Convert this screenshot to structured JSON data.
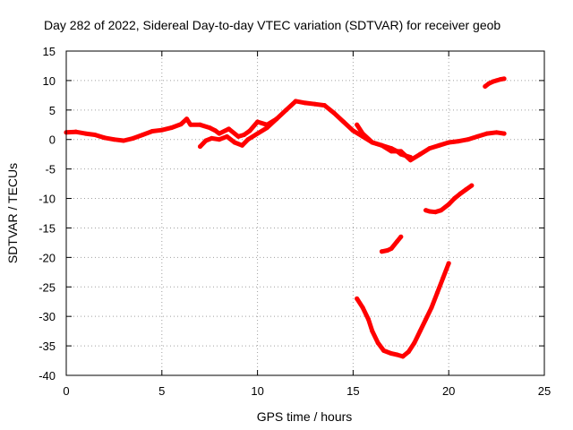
{
  "chart_data": {
    "type": "scatter",
    "title": "Day 282 of 2022, Sidereal Day-to-day VTEC variation (SDTVAR) for receiver geob",
    "xlabel": "GPS time / hours",
    "ylabel": "SDTVAR / TECUs",
    "xlim": [
      0,
      25
    ],
    "ylim": [
      -40,
      15
    ],
    "xticks": [
      0,
      5,
      10,
      15,
      20,
      25
    ],
    "yticks": [
      15,
      10,
      5,
      0,
      -5,
      -10,
      -15,
      -20,
      -25,
      -30,
      -35,
      -40
    ],
    "grid": true,
    "series_color": "#ff0000",
    "series": [
      {
        "x": [
          0.0,
          0.5,
          1.0,
          1.5,
          2.0,
          2.5,
          3.0,
          3.5,
          4.0,
          4.5,
          5.0,
          5.5,
          6.0,
          6.3,
          6.5,
          7.0,
          7.5,
          7.8,
          8.0,
          8.5,
          9.0,
          9.3,
          9.6,
          10.0,
          10.5,
          11.0,
          11.5,
          12.0,
          12.5,
          13.0,
          13.5,
          14.0,
          14.5,
          15.0,
          15.5,
          16.0,
          16.5,
          17.0,
          17.5,
          18.0,
          18.5,
          19.0,
          19.5,
          20.0,
          20.5,
          21.0,
          21.5,
          22.0,
          22.5,
          22.9
        ],
        "y": [
          1.2,
          1.3,
          1.0,
          0.8,
          0.3,
          0.0,
          -0.2,
          0.2,
          0.8,
          1.4,
          1.6,
          2.0,
          2.6,
          3.5,
          2.5,
          2.5,
          2.0,
          1.5,
          1.0,
          1.8,
          0.5,
          0.8,
          1.5,
          3.0,
          2.5,
          3.5,
          5.0,
          6.5,
          6.2,
          6.0,
          5.8,
          4.5,
          3.0,
          1.5,
          0.5,
          -0.5,
          -1.0,
          -2.0,
          -2.0,
          -3.5,
          -2.5,
          -1.5,
          -1.0,
          -0.5,
          -0.3,
          0.0,
          0.5,
          1.0,
          1.2,
          1.0
        ]
      },
      {
        "x": [
          7.0,
          7.3,
          7.6,
          8.0,
          8.4,
          8.8,
          9.2,
          9.5,
          10.0,
          10.5,
          11.0
        ],
        "y": [
          -1.2,
          -0.2,
          0.2,
          0.0,
          0.5,
          -0.5,
          -1.0,
          0.0,
          1.0,
          2.0,
          3.5
        ]
      },
      {
        "x": [
          15.2,
          15.5,
          16.0,
          16.5,
          17.0,
          17.3,
          17.5,
          18.0
        ],
        "y": [
          2.5,
          1.0,
          -0.5,
          -1.0,
          -1.5,
          -2.0,
          -2.5,
          -3.0
        ]
      },
      {
        "x": [
          15.2,
          15.5,
          15.8,
          16.0,
          16.3,
          16.6,
          17.0,
          17.3,
          17.6,
          17.9,
          18.2,
          18.5,
          18.8,
          19.1,
          19.4,
          19.7,
          20.0
        ],
        "y": [
          -27.0,
          -28.5,
          -30.5,
          -32.5,
          -34.5,
          -35.8,
          -36.3,
          -36.5,
          -36.8,
          -36.0,
          -34.5,
          -32.5,
          -30.5,
          -28.5,
          -26.0,
          -23.5,
          -21.0
        ]
      },
      {
        "x": [
          16.5,
          16.8,
          17.0,
          17.3,
          17.5
        ],
        "y": [
          -19.0,
          -18.8,
          -18.5,
          -17.3,
          -16.5
        ]
      },
      {
        "x": [
          18.8,
          19.0,
          19.3,
          19.6,
          20.0,
          20.3,
          20.6,
          20.9,
          21.2
        ],
        "y": [
          -12.0,
          -12.2,
          -12.3,
          -12.0,
          -11.0,
          -10.0,
          -9.2,
          -8.5,
          -7.8
        ]
      },
      {
        "x": [
          21.9,
          22.1,
          22.3,
          22.5,
          22.7,
          22.9
        ],
        "y": [
          9.0,
          9.5,
          9.8,
          10.0,
          10.2,
          10.3
        ]
      }
    ]
  }
}
